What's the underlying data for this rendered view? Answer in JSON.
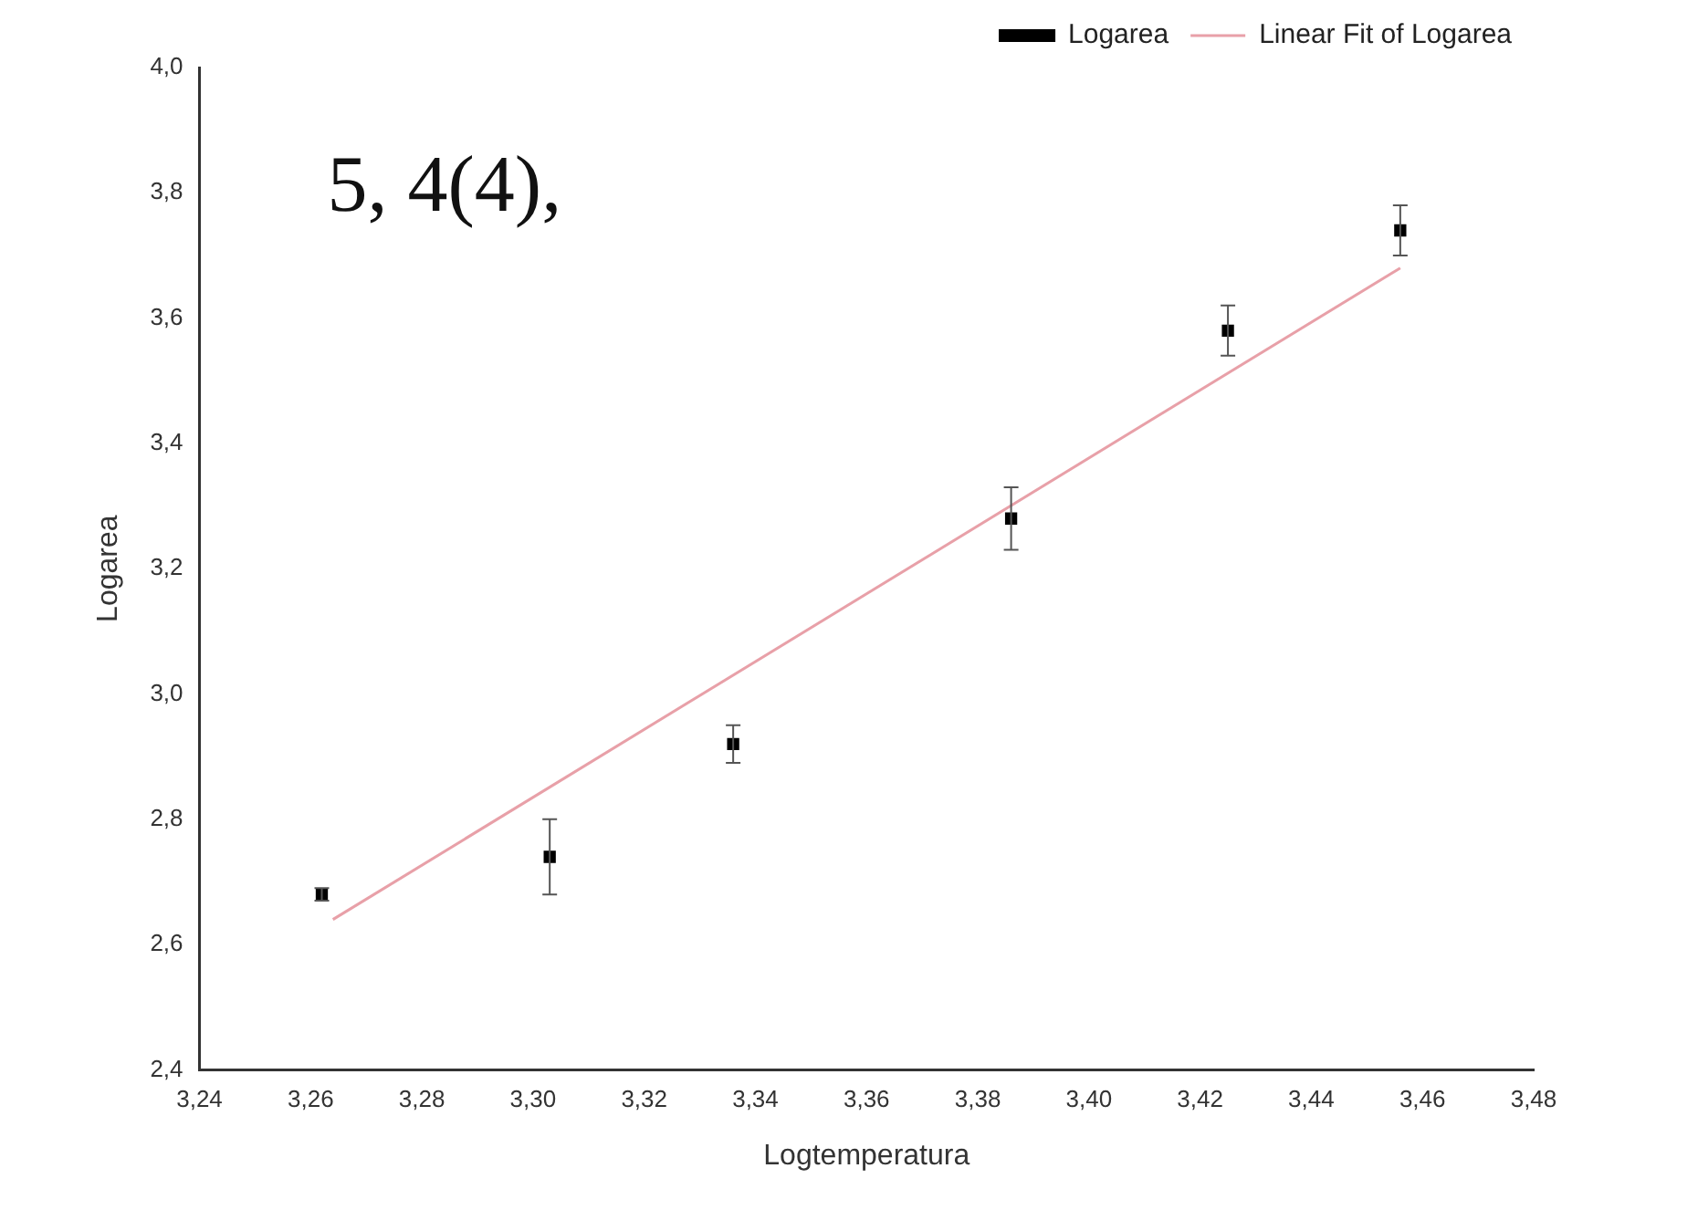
{
  "chart_data": {
    "type": "scatter",
    "xlabel": "Logtemperatura",
    "ylabel": "Logarea",
    "annotations": [
      "5, 4(4),"
    ],
    "xlim": [
      3.24,
      3.48
    ],
    "xticks": [
      {
        "value": 3.24,
        "label": "3,24"
      },
      {
        "value": 3.26,
        "label": "3,26"
      },
      {
        "value": 3.28,
        "label": "3,28"
      },
      {
        "value": 3.3,
        "label": "3,30"
      },
      {
        "value": 3.32,
        "label": "3,32"
      },
      {
        "value": 3.34,
        "label": "3,34"
      },
      {
        "value": 3.36,
        "label": "3,36"
      },
      {
        "value": 3.38,
        "label": "3,38"
      },
      {
        "value": 3.4,
        "label": "3,40"
      },
      {
        "value": 3.42,
        "label": "3,42"
      },
      {
        "value": 3.44,
        "label": "3,44"
      },
      {
        "value": 3.46,
        "label": "3,46"
      },
      {
        "value": 3.48,
        "label": "3,48"
      }
    ],
    "ylim": [
      2.4,
      4.0
    ],
    "yticks": [
      {
        "value": 2.4,
        "label": "2,4"
      },
      {
        "value": 2.6,
        "label": "2,6"
      },
      {
        "value": 2.8,
        "label": "2,8"
      },
      {
        "value": 3.0,
        "label": "3,0"
      },
      {
        "value": 3.2,
        "label": "3,2"
      },
      {
        "value": 3.4,
        "label": "3,4"
      },
      {
        "value": 3.6,
        "label": "3,6"
      },
      {
        "value": 3.8,
        "label": "3,8"
      },
      {
        "value": 4.0,
        "label": "4,0"
      }
    ],
    "series": [
      {
        "name": "Logarea",
        "marker": "square",
        "color": "#000000",
        "x": [
          3.262,
          3.303,
          3.336,
          3.386,
          3.425,
          3.456
        ],
        "values": [
          2.68,
          2.74,
          2.92,
          3.28,
          3.58,
          3.74
        ],
        "errors": [
          0.01,
          0.06,
          0.03,
          0.05,
          0.04,
          0.04
        ]
      },
      {
        "name": "Linear Fit of Logarea",
        "type": "line",
        "marker": "none",
        "color": "#e8a0a8",
        "x": [
          3.264,
          3.456
        ],
        "values": [
          2.64,
          3.68
        ]
      }
    ],
    "legend": "top right",
    "grid": false
  }
}
